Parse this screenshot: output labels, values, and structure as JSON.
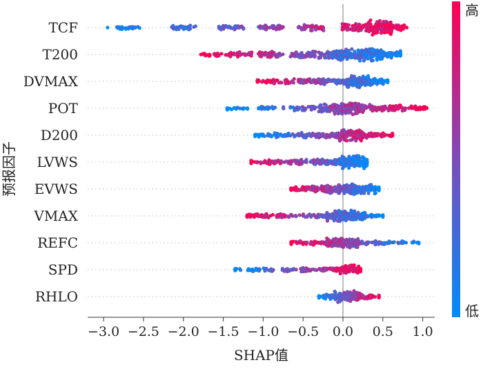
{
  "chart_data": {
    "type": "scatter",
    "subtype": "shap-beeswarm",
    "title": "",
    "xlabel": "SHAP值",
    "ylabel": "预报因子",
    "xlim": [
      -3.2,
      1.15
    ],
    "xticks": [
      -3.0,
      -2.5,
      -2.0,
      -1.5,
      -1.0,
      -0.5,
      0.0,
      0.5,
      1.0
    ],
    "xtick_labels": [
      "−3.0",
      "−2.5",
      "−2.0",
      "−1.5",
      "−1.0",
      "−0.5",
      "0.0",
      "0.5",
      "1.0"
    ],
    "grid": false,
    "row_guides": "dotted",
    "zero_line": true,
    "colorbar": {
      "label_high": "高",
      "label_low": "低",
      "color_high": "#ff0052",
      "color_low": "#008bfb",
      "placement": "right"
    },
    "features": [
      {
        "name": "TCF",
        "min": -2.95,
        "max": 0.8,
        "clusters": [
          [
            -2.7,
            0.7
          ],
          [
            -2.0,
            1.0
          ],
          [
            -1.4,
            1.0
          ],
          [
            -0.9,
            1.2
          ],
          [
            -0.4,
            1.5
          ],
          [
            0.15,
            2.2
          ],
          [
            0.45,
            4.5
          ],
          [
            0.62,
            1.8
          ]
        ],
        "hi_side": "right"
      },
      {
        "name": "T200",
        "min": -1.78,
        "max": 0.72,
        "clusters": [
          [
            -1.6,
            0.6
          ],
          [
            -1.3,
            1.0
          ],
          [
            -0.9,
            1.4
          ],
          [
            -0.5,
            1.8
          ],
          [
            -0.15,
            2.5
          ],
          [
            0.05,
            3.5
          ],
          [
            0.35,
            4.0
          ],
          [
            0.6,
            2.0
          ]
        ],
        "hi_side": "left"
      },
      {
        "name": "DVMAX",
        "min": -1.07,
        "max": 0.56,
        "clusters": [
          [
            -1.0,
            0.5
          ],
          [
            -0.75,
            1.0
          ],
          [
            -0.4,
            1.6
          ],
          [
            -0.15,
            1.6
          ],
          [
            0.05,
            1.2
          ],
          [
            0.2,
            4.0
          ],
          [
            0.38,
            1.5
          ],
          [
            0.52,
            0.4
          ]
        ],
        "hi_side": "left"
      },
      {
        "name": "POT",
        "min": -1.45,
        "max": 1.05,
        "clusters": [
          [
            -1.35,
            0.4
          ],
          [
            -0.9,
            0.7
          ],
          [
            -0.5,
            1.0
          ],
          [
            -0.15,
            2.2
          ],
          [
            0.05,
            3.8
          ],
          [
            0.3,
            2.0
          ],
          [
            0.6,
            1.4
          ],
          [
            0.9,
            0.8
          ]
        ],
        "hi_side": "right"
      },
      {
        "name": "D200",
        "min": -1.1,
        "max": 0.62,
        "clusters": [
          [
            -1.0,
            0.5
          ],
          [
            -0.7,
            0.9
          ],
          [
            -0.4,
            1.2
          ],
          [
            -0.15,
            1.2
          ],
          [
            0.1,
            3.6
          ],
          [
            0.35,
            1.4
          ],
          [
            0.55,
            0.5
          ]
        ],
        "hi_side": "right"
      },
      {
        "name": "LVWS",
        "min": -1.15,
        "max": 0.3,
        "clusters": [
          [
            -1.1,
            0.4
          ],
          [
            -0.8,
            0.9
          ],
          [
            -0.5,
            1.3
          ],
          [
            -0.2,
            1.8
          ],
          [
            0.05,
            2.5
          ],
          [
            0.15,
            4.0
          ],
          [
            0.25,
            1.2
          ]
        ],
        "hi_side": "left"
      },
      {
        "name": "EVWS",
        "min": -0.65,
        "max": 0.45,
        "clusters": [
          [
            -0.6,
            0.8
          ],
          [
            -0.35,
            1.6
          ],
          [
            -0.1,
            2.4
          ],
          [
            0.1,
            3.2
          ],
          [
            0.25,
            2.6
          ],
          [
            0.4,
            1.0
          ]
        ],
        "hi_side": "left"
      },
      {
        "name": "VMAX",
        "min": -1.2,
        "max": 0.5,
        "clusters": [
          [
            -1.15,
            0.6
          ],
          [
            -0.9,
            0.9
          ],
          [
            -0.65,
            0.6
          ],
          [
            -0.35,
            0.8
          ],
          [
            -0.05,
            3.2
          ],
          [
            0.12,
            2.6
          ],
          [
            0.3,
            0.8
          ],
          [
            0.45,
            0.4
          ]
        ],
        "hi_side": "left"
      },
      {
        "name": "REFC",
        "min": -0.65,
        "max": 0.95,
        "clusters": [
          [
            -0.6,
            0.5
          ],
          [
            -0.3,
            1.0
          ],
          [
            -0.05,
            2.4
          ],
          [
            0.05,
            2.8
          ],
          [
            0.3,
            1.0
          ],
          [
            0.6,
            0.5
          ],
          [
            0.9,
            0.4
          ]
        ],
        "hi_side": "left"
      },
      {
        "name": "SPD",
        "min": -1.35,
        "max": 0.22,
        "clusters": [
          [
            -1.3,
            0.5
          ],
          [
            -1.0,
            0.6
          ],
          [
            -0.6,
            0.8
          ],
          [
            -0.35,
            0.9
          ],
          [
            -0.1,
            0.9
          ],
          [
            0.05,
            2.6
          ],
          [
            0.18,
            0.8
          ]
        ],
        "hi_side": "right"
      },
      {
        "name": "RHLO",
        "min": -0.3,
        "max": 0.45,
        "clusters": [
          [
            -0.28,
            0.5
          ],
          [
            -0.1,
            1.2
          ],
          [
            0.05,
            3.2
          ],
          [
            0.18,
            1.6
          ],
          [
            0.38,
            0.5
          ]
        ],
        "hi_side": "right"
      }
    ]
  }
}
